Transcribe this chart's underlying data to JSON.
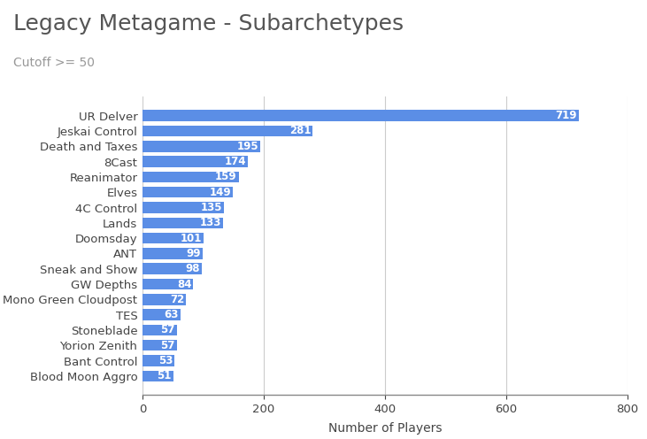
{
  "title": "Legacy Metagame - Subarchetypes",
  "subtitle": "Cutoff >= 50",
  "xlabel": "Number of Players",
  "categories": [
    "Blood Moon Aggro",
    "Bant Control",
    "Yorion Zenith",
    "Stoneblade",
    "TES",
    "Mono Green Cloudpost",
    "GW Depths",
    "Sneak and Show",
    "ANT",
    "Doomsday",
    "Lands",
    "4C Control",
    "Elves",
    "Reanimator",
    "8Cast",
    "Death and Taxes",
    "Jeskai Control",
    "UR Delver"
  ],
  "values": [
    51,
    53,
    57,
    57,
    63,
    72,
    84,
    98,
    99,
    101,
    133,
    135,
    149,
    159,
    174,
    195,
    281,
    719
  ],
  "bar_color": "#5B8EE6",
  "label_color": "#FFFFFF",
  "background_color": "#FFFFFF",
  "grid_color": "#CCCCCC",
  "title_color": "#555555",
  "subtitle_color": "#999999",
  "tick_color": "#444444",
  "xlim": [
    0,
    800
  ],
  "xticks": [
    0,
    200,
    400,
    600,
    800
  ],
  "title_fontsize": 18,
  "subtitle_fontsize": 10,
  "bar_label_fontsize": 8.5,
  "ytick_fontsize": 9.5,
  "xtick_fontsize": 9.5,
  "xlabel_fontsize": 10
}
